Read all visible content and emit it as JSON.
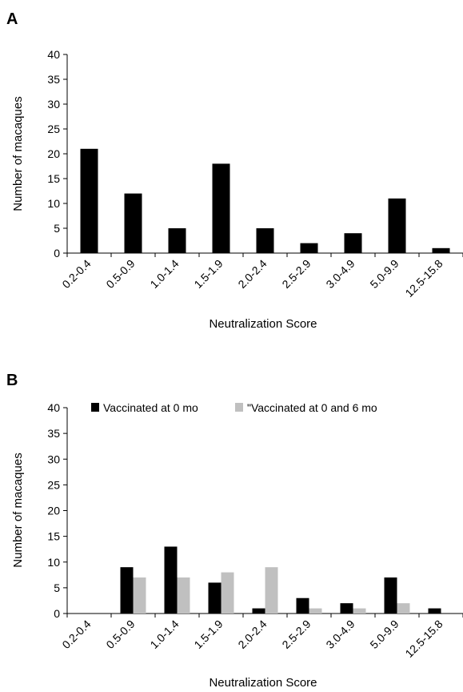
{
  "chart_data": [
    {
      "panel": "A",
      "type": "bar",
      "xlabel": "Neutralization Score",
      "ylabel": "Number of macaques",
      "ylim": [
        0,
        40
      ],
      "yticks": [
        0,
        5,
        10,
        15,
        20,
        25,
        30,
        35,
        40
      ],
      "categories": [
        "0.2-0.4",
        "0.5-0.9",
        "1.0-1.4",
        "1.5-1.9",
        "2.0-2.4",
        "2.5-2.9",
        "3.0-4.9",
        "5.0-9.9",
        "12.5-15.8"
      ],
      "series": [
        {
          "values": [
            21,
            12,
            5,
            18,
            5,
            2,
            4,
            11,
            1
          ],
          "color": "#000000"
        }
      ],
      "grid": false,
      "legend": "none"
    },
    {
      "panel": "B",
      "type": "bar",
      "xlabel": "Neutralization Score",
      "ylabel": "Number of macaques",
      "ylim": [
        0,
        40
      ],
      "yticks": [
        0,
        5,
        10,
        15,
        20,
        25,
        30,
        35,
        40
      ],
      "categories": [
        "0.2-0.4",
        "0.5-0.9",
        "1.0-1.4",
        "1.5-1.9",
        "2.0-2.4",
        "2.5-2.9",
        "3.0-4.9",
        "5.0-9.9",
        "12.5-15.8"
      ],
      "series": [
        {
          "name": "Vaccinated at 0 mo",
          "values": [
            0,
            9,
            13,
            6,
            1,
            3,
            2,
            7,
            1
          ],
          "color": "#000000"
        },
        {
          "name": "\"Vaccinated at 0 and 6 mo",
          "values": [
            0,
            7,
            7,
            8,
            9,
            1,
            1,
            2,
            0
          ],
          "color": "#c0c0c0"
        }
      ],
      "grid": false,
      "legend": "top"
    }
  ]
}
